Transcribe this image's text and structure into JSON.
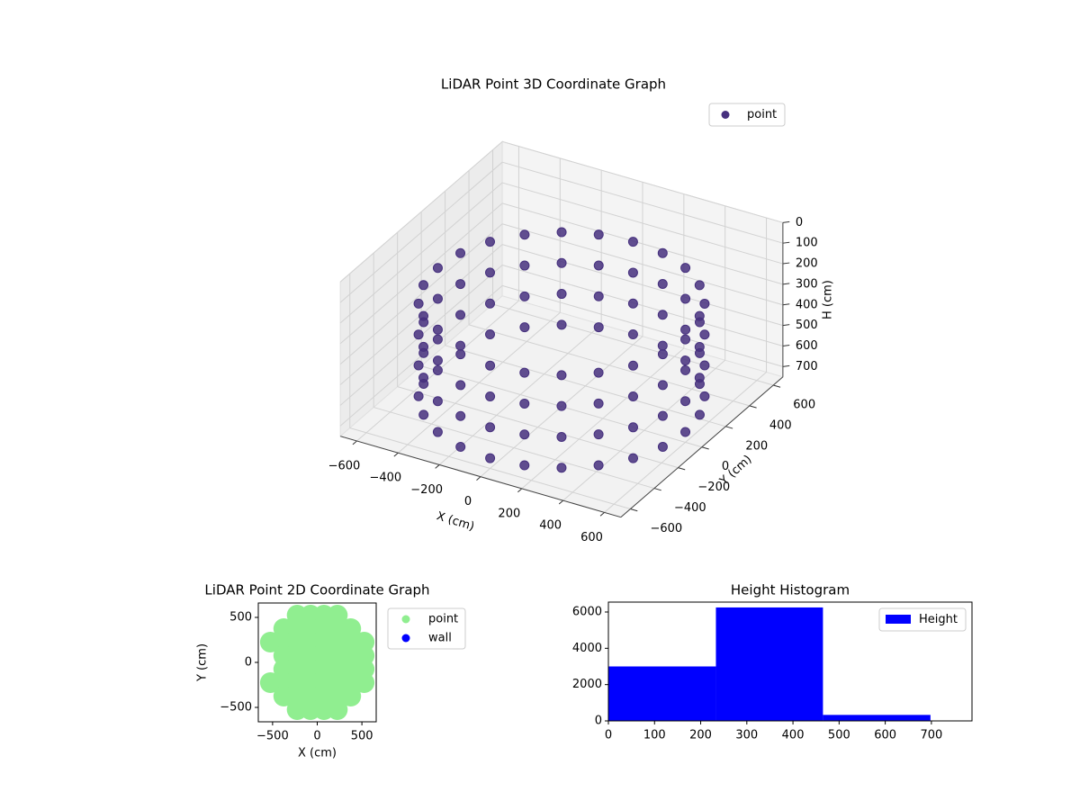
{
  "chart_data": [
    {
      "type": "scatter3d",
      "title": "LiDAR Point 3D Coordinate Graph",
      "xlabel": "X (cm)",
      "ylabel": "Y (cm)",
      "zlabel": "H (cm)",
      "xlim": [
        -680,
        680
      ],
      "ylim": [
        -680,
        680
      ],
      "zlim": [
        0,
        750
      ],
      "zinverted": true,
      "xticks": [
        {
          "value": -600,
          "label": "−600"
        },
        {
          "value": -400,
          "label": "−400"
        },
        {
          "value": -200,
          "label": "−200"
        },
        0,
        200,
        400,
        600
      ],
      "yticks": [
        {
          "value": -600,
          "label": "−600"
        },
        {
          "value": -400,
          "label": "−400"
        },
        {
          "value": -200,
          "label": "−200"
        },
        0,
        200,
        400,
        600
      ],
      "zticks": [
        0,
        100,
        200,
        300,
        400,
        500,
        600,
        700
      ],
      "grid": true,
      "legend": "upper right",
      "series": [
        {
          "name": "point",
          "color": "#46307e",
          "x": [
            600,
            580,
            520,
            424,
            300,
            155,
            0,
            -155,
            -300,
            -424,
            -520,
            -580,
            -600,
            -580,
            -520,
            -424,
            -300,
            -155,
            0,
            155,
            300,
            424,
            520,
            580,
            600,
            580,
            520,
            424,
            300,
            155,
            0,
            -155,
            -300,
            -424,
            -520,
            -580,
            -600,
            -580,
            -520,
            -424,
            -300,
            -155,
            0,
            155,
            300,
            424,
            520,
            580,
            600,
            580,
            520,
            424,
            300,
            155,
            0,
            -155,
            -300,
            -424,
            -520,
            -580,
            -600,
            -580,
            -520,
            -424,
            -300,
            -155,
            0,
            155,
            300,
            424,
            520,
            580,
            600,
            580,
            520,
            424,
            300,
            155,
            0,
            -155,
            -300,
            -424,
            -520,
            -580,
            -600,
            -580,
            -520,
            -424,
            -300,
            -155,
            0,
            155,
            300,
            424,
            520,
            580
          ],
          "y": [
            0,
            155,
            300,
            424,
            520,
            580,
            600,
            580,
            520,
            424,
            300,
            155,
            0,
            -155,
            -300,
            -424,
            -520,
            -580,
            -600,
            -580,
            -520,
            -424,
            -300,
            -155,
            0,
            155,
            300,
            424,
            520,
            580,
            600,
            580,
            520,
            424,
            300,
            155,
            0,
            -155,
            -300,
            -424,
            -520,
            -580,
            -600,
            -580,
            -520,
            -424,
            -300,
            -155,
            0,
            155,
            300,
            424,
            520,
            580,
            600,
            580,
            520,
            424,
            300,
            155,
            0,
            -155,
            -300,
            -424,
            -520,
            -580,
            -600,
            -580,
            -520,
            -424,
            -300,
            -155,
            0,
            155,
            300,
            424,
            520,
            580,
            600,
            580,
            520,
            424,
            300,
            155,
            0,
            -155,
            -300,
            -424,
            -520,
            -580,
            -600,
            -580,
            -520,
            -424,
            -300,
            -155
          ],
          "z": [
            250,
            250,
            250,
            250,
            250,
            250,
            250,
            250,
            250,
            250,
            250,
            250,
            250,
            250,
            250,
            250,
            250,
            250,
            250,
            250,
            250,
            250,
            250,
            250,
            400,
            400,
            400,
            400,
            400,
            400,
            400,
            400,
            400,
            400,
            400,
            400,
            400,
            400,
            400,
            400,
            400,
            400,
            400,
            400,
            400,
            400,
            400,
            400,
            550,
            550,
            550,
            550,
            550,
            550,
            550,
            550,
            550,
            550,
            550,
            550,
            550,
            550,
            550,
            550,
            550,
            550,
            550,
            550,
            550,
            550,
            550,
            550,
            700,
            700,
            700,
            700,
            700,
            700,
            700,
            700,
            700,
            700,
            700,
            700,
            700,
            700,
            700,
            700,
            700,
            700,
            700,
            700,
            700,
            700,
            700,
            700
          ]
        }
      ]
    },
    {
      "type": "scatter",
      "title": "LiDAR Point 2D Coordinate Graph",
      "xlabel": "X (cm)",
      "ylabel": "Y (cm)",
      "xlim": [
        -660,
        660
      ],
      "ylim": [
        -660,
        660
      ],
      "xticks": [
        {
          "value": -500,
          "label": "−500"
        },
        0,
        500
      ],
      "yticks": [
        {
          "value": -500,
          "label": "−500"
        },
        0,
        500
      ],
      "legend": "outside right",
      "series": [
        {
          "name": "point",
          "color": "#90ee90",
          "x": [
            -225,
            -75,
            75,
            225,
            -375,
            -225,
            -75,
            75,
            225,
            375,
            -525,
            -375,
            -225,
            -75,
            75,
            225,
            375,
            525,
            -375,
            -225,
            -75,
            75,
            225,
            375,
            525,
            -375,
            -225,
            -75,
            75,
            225,
            375,
            525,
            -525,
            -375,
            -225,
            -75,
            75,
            225,
            375,
            525,
            -375,
            -225,
            -75,
            75,
            225,
            375,
            -225,
            -75,
            75,
            225
          ],
          "y": [
            525,
            525,
            525,
            525,
            375,
            375,
            375,
            375,
            375,
            375,
            225,
            225,
            225,
            225,
            225,
            225,
            225,
            225,
            75,
            75,
            75,
            75,
            75,
            75,
            75,
            -75,
            -75,
            -75,
            -75,
            -75,
            -75,
            -75,
            -225,
            -225,
            -225,
            -225,
            -225,
            -225,
            -225,
            -225,
            -375,
            -375,
            -375,
            -375,
            -375,
            -375,
            -525,
            -525,
            -525,
            -525
          ]
        },
        {
          "name": "wall",
          "color": "#0000ff",
          "x": [],
          "y": []
        }
      ]
    },
    {
      "type": "histogram",
      "title": "Height Histogram",
      "bins": [
        0,
        233,
        465,
        698
      ],
      "xlim": [
        0,
        788
      ],
      "ylim": [
        0,
        6545
      ],
      "xticks": [
        0,
        100,
        200,
        300,
        400,
        500,
        600,
        700
      ],
      "yticks": [
        0,
        2000,
        4000,
        6000
      ],
      "legend": "upper right",
      "series": [
        {
          "name": "Height",
          "color": "#0000ff",
          "values": [
            3000,
            6250,
            330
          ]
        }
      ]
    }
  ]
}
